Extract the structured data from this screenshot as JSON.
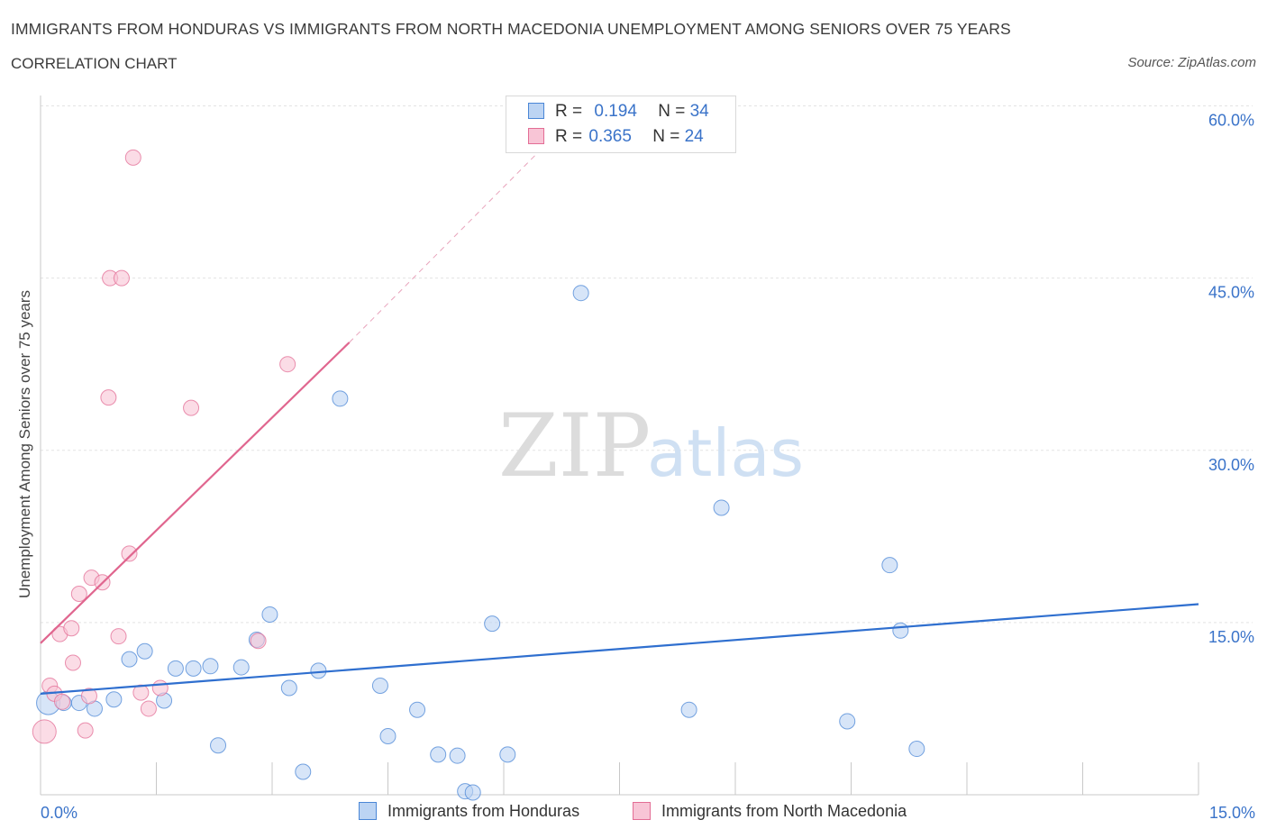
{
  "title": "IMMIGRANTS FROM HONDURAS VS IMMIGRANTS FROM NORTH MACEDONIA UNEMPLOYMENT AMONG SENIORS OVER 75 YEARS",
  "subtitle": "CORRELATION CHART",
  "source": "Source: ZipAtlas.com",
  "watermark": {
    "zip": "ZIP",
    "atlas": "atlas"
  },
  "legend": {
    "r_label": "R =",
    "n_label": "N =",
    "series": [
      {
        "name": "Immigrants from Honduras",
        "r": "0.194",
        "n": "34"
      },
      {
        "name": "Immigrants from North Macedonia",
        "r": "0.365",
        "n": "24"
      }
    ]
  },
  "chart_data": {
    "type": "scatter",
    "title": "IMMIGRANTS FROM HONDURAS VS IMMIGRANTS FROM NORTH MACEDONIA UNEMPLOYMENT AMONG SENIORS OVER 75 YEARS",
    "xlabel": "",
    "ylabel": "Unemployment Among Seniors over 75 years",
    "xlim": [
      0,
      15
    ],
    "ylim": [
      0,
      60
    ],
    "x_tick_labels": [
      "0.0%",
      "15.0%"
    ],
    "y_ticks": [
      15,
      30,
      45,
      60
    ],
    "y_tick_labels": [
      "15.0%",
      "30.0%",
      "45.0%",
      "60.0%"
    ],
    "grid": true,
    "series": [
      {
        "name": "Immigrants from Honduras",
        "color": "#4a86d6",
        "fill": "#bcd4f3",
        "points": [
          [
            0.1,
            8.0,
            2
          ],
          [
            0.3,
            8.0,
            1
          ],
          [
            0.5,
            8.0,
            1
          ],
          [
            0.7,
            7.5,
            1
          ],
          [
            0.95,
            8.3,
            1
          ],
          [
            1.15,
            11.8,
            1
          ],
          [
            1.35,
            12.5,
            1
          ],
          [
            1.6,
            8.2,
            1
          ],
          [
            1.75,
            11.0,
            1
          ],
          [
            1.98,
            11.0,
            1
          ],
          [
            2.2,
            11.2,
            1
          ],
          [
            2.3,
            4.3,
            1
          ],
          [
            2.6,
            11.1,
            1
          ],
          [
            2.8,
            13.5,
            1
          ],
          [
            2.97,
            15.7,
            1
          ],
          [
            3.22,
            9.3,
            1
          ],
          [
            3.4,
            2.0,
            1
          ],
          [
            3.6,
            10.8,
            1
          ],
          [
            3.88,
            34.5,
            1
          ],
          [
            4.4,
            9.5,
            1
          ],
          [
            4.5,
            5.1,
            1
          ],
          [
            4.88,
            7.4,
            1
          ],
          [
            5.15,
            3.5,
            1
          ],
          [
            5.4,
            3.4,
            1
          ],
          [
            5.5,
            0.3,
            1
          ],
          [
            5.6,
            0.2,
            1
          ],
          [
            5.85,
            14.9,
            1
          ],
          [
            6.05,
            3.5,
            1
          ],
          [
            7.0,
            43.7,
            1
          ],
          [
            8.4,
            7.4,
            1
          ],
          [
            8.82,
            25.0,
            1
          ],
          [
            10.45,
            6.4,
            1
          ],
          [
            11.0,
            20.0,
            1
          ],
          [
            11.14,
            14.3,
            1
          ],
          [
            11.35,
            4.0,
            1
          ]
        ],
        "trend": {
          "x": [
            0.0,
            15.0
          ],
          "y": [
            8.8,
            16.6
          ]
        }
      },
      {
        "name": "Immigrants from North Macedonia",
        "color": "#e36d95",
        "fill": "#f8c5d6",
        "points": [
          [
            0.05,
            5.5,
            2
          ],
          [
            0.12,
            9.5,
            1
          ],
          [
            0.18,
            8.8,
            1
          ],
          [
            0.25,
            14.0,
            1
          ],
          [
            0.28,
            8.1,
            1
          ],
          [
            0.4,
            14.5,
            1
          ],
          [
            0.42,
            11.5,
            1
          ],
          [
            0.5,
            17.5,
            1
          ],
          [
            0.58,
            5.6,
            1
          ],
          [
            0.63,
            8.6,
            1
          ],
          [
            0.66,
            18.9,
            1
          ],
          [
            0.8,
            18.5,
            1
          ],
          [
            0.88,
            34.6,
            1
          ],
          [
            0.9,
            45.0,
            1
          ],
          [
            1.01,
            13.8,
            1
          ],
          [
            1.05,
            45.0,
            1
          ],
          [
            1.15,
            21.0,
            1
          ],
          [
            1.2,
            55.5,
            1
          ],
          [
            1.3,
            8.9,
            1
          ],
          [
            1.4,
            7.5,
            1
          ],
          [
            1.55,
            9.3,
            1
          ],
          [
            1.95,
            33.7,
            1
          ],
          [
            2.82,
            13.4,
            1
          ],
          [
            3.2,
            37.5,
            1
          ]
        ],
        "trend": {
          "x": [
            0.0,
            4.0
          ],
          "y": [
            13.2,
            39.4
          ]
        },
        "trend_extension": {
          "x": [
            4.0,
            6.6
          ],
          "y": [
            39.4,
            57.0
          ]
        }
      }
    ]
  }
}
